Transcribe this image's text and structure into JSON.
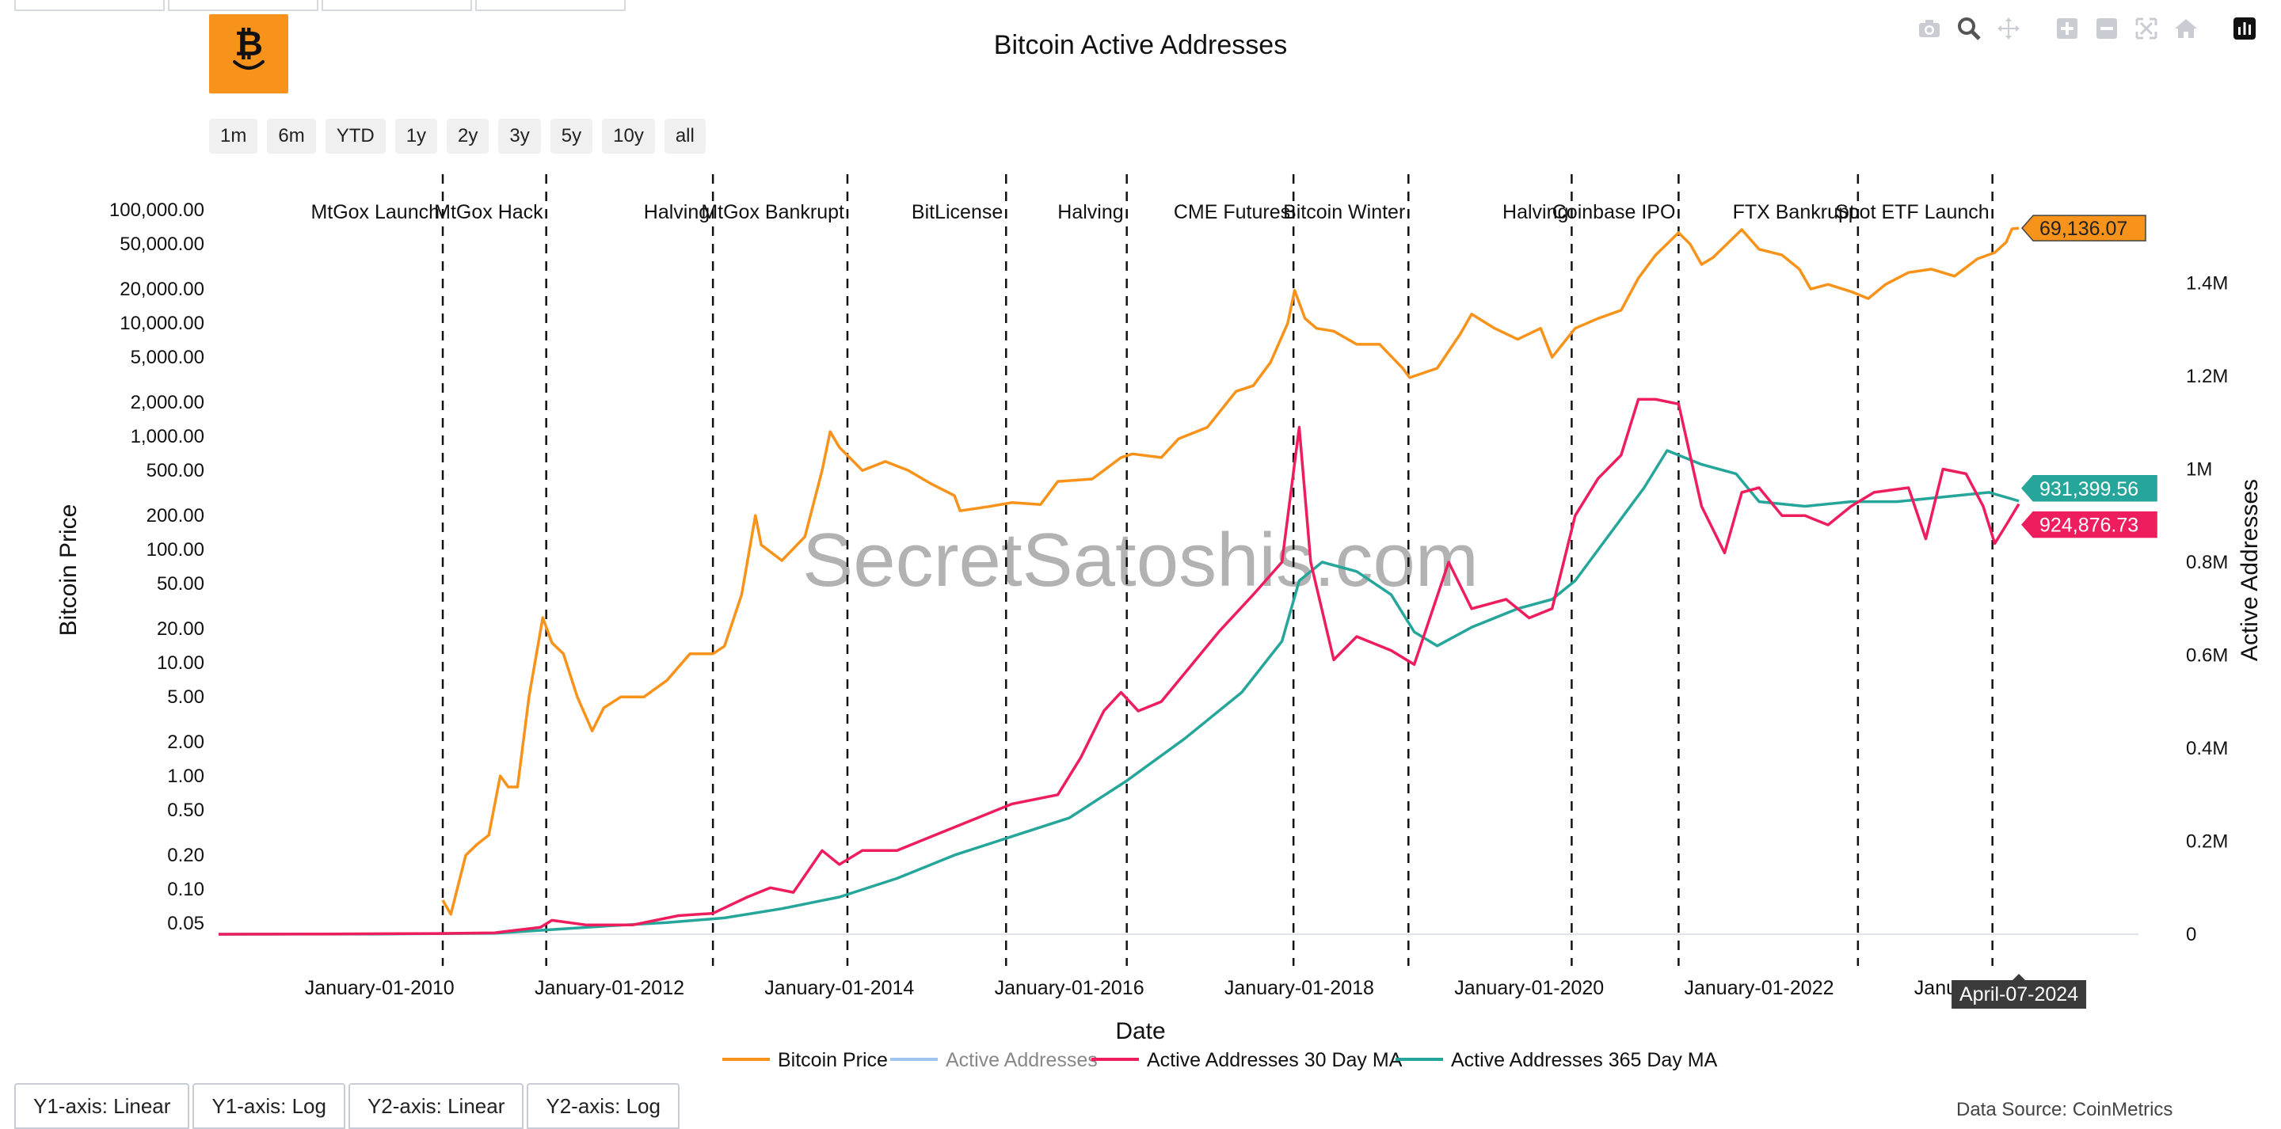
{
  "header": {
    "title": "Bitcoin Active Addresses"
  },
  "range_buttons": [
    "1m",
    "6m",
    "YTD",
    "1y",
    "2y",
    "3y",
    "5y",
    "10y",
    "all"
  ],
  "modebar": [
    "camera-icon",
    "zoom-icon",
    "pan-icon",
    "zoom-in-icon",
    "zoom-out-icon",
    "autoscale-icon",
    "reset-axes-icon",
    "plotly-logo-icon"
  ],
  "axis_toggles": [
    "Y1-axis: Linear",
    "Y1-axis: Log",
    "Y2-axis: Linear",
    "Y2-axis: Log"
  ],
  "source": "Data Source: CoinMetrics",
  "watermark": "SecretSatoshis.com",
  "hover_label": "April-07-2024",
  "colors": {
    "price": "#f7931a",
    "active": "#9ec5f0",
    "ma30": "#ee1d5e",
    "ma365": "#26a69a",
    "logo": "#f7931a"
  },
  "chart_data": {
    "type": "line",
    "title": "Bitcoin Active Addresses",
    "xlabel": "Date",
    "y1label": "Bitcoin Price",
    "y2label": "Active Addresses",
    "y1_scale": "log",
    "y1_range": [
      0.04,
      150000
    ],
    "y2_range": [
      0,
      1600000
    ],
    "x_range": [
      2008.6,
      2025.3
    ],
    "x_ticks": [
      {
        "x": 2010,
        "label": "January-01-2010"
      },
      {
        "x": 2012,
        "label": "January-01-2012"
      },
      {
        "x": 2014,
        "label": "January-01-2014"
      },
      {
        "x": 2016,
        "label": "January-01-2016"
      },
      {
        "x": 2018,
        "label": "January-01-2018"
      },
      {
        "x": 2020,
        "label": "January-01-2020"
      },
      {
        "x": 2022,
        "label": "January-01-2022"
      },
      {
        "x": 2024,
        "label": "January-01-2024"
      }
    ],
    "y1_ticks": [
      {
        "v": 100000,
        "label": "100,000.00"
      },
      {
        "v": 50000,
        "label": "50,000.00"
      },
      {
        "v": 20000,
        "label": "20,000.00"
      },
      {
        "v": 10000,
        "label": "10,000.00"
      },
      {
        "v": 5000,
        "label": "5,000.00"
      },
      {
        "v": 2000,
        "label": "2,000.00"
      },
      {
        "v": 1000,
        "label": "1,000.00"
      },
      {
        "v": 500,
        "label": "500.00"
      },
      {
        "v": 200,
        "label": "200.00"
      },
      {
        "v": 100,
        "label": "100.00"
      },
      {
        "v": 50,
        "label": "50.00"
      },
      {
        "v": 20,
        "label": "20.00"
      },
      {
        "v": 10,
        "label": "10.00"
      },
      {
        "v": 5,
        "label": "5.00"
      },
      {
        "v": 2,
        "label": "2.00"
      },
      {
        "v": 1,
        "label": "1.00"
      },
      {
        "v": 0.5,
        "label": "0.50"
      },
      {
        "v": 0.2,
        "label": "0.20"
      },
      {
        "v": 0.1,
        "label": "0.10"
      },
      {
        "v": 0.05,
        "label": "0.05"
      }
    ],
    "y2_ticks": [
      {
        "v": 1400000,
        "label": "1.4M"
      },
      {
        "v": 1200000,
        "label": "1.2M"
      },
      {
        "v": 1000000,
        "label": "1M"
      },
      {
        "v": 800000,
        "label": "0.8M"
      },
      {
        "v": 600000,
        "label": "0.6M"
      },
      {
        "v": 400000,
        "label": "0.4M"
      },
      {
        "v": 200000,
        "label": "0.2M"
      },
      {
        "v": 0,
        "label": "0"
      }
    ],
    "events": [
      {
        "x": 2010.55,
        "label": "MtGox Launch"
      },
      {
        "x": 2011.45,
        "label": "MtGox Hack"
      },
      {
        "x": 2012.9,
        "label": "Halving"
      },
      {
        "x": 2014.07,
        "label": "MtGox Bankrupt"
      },
      {
        "x": 2015.45,
        "label": "BitLicense"
      },
      {
        "x": 2016.5,
        "label": "Halving"
      },
      {
        "x": 2017.95,
        "label": "CME Futures"
      },
      {
        "x": 2018.95,
        "label": "Bitcoin Winter"
      },
      {
        "x": 2020.37,
        "label": "Halving"
      },
      {
        "x": 2021.3,
        "label": "Coinbase IPO"
      },
      {
        "x": 2022.86,
        "label": "FTX Bankrupt"
      },
      {
        "x": 2024.03,
        "label": "Spot ETF Launch"
      }
    ],
    "series": [
      {
        "name": "Bitcoin Price",
        "axis": "y1",
        "points": [
          [
            2010.55,
            0.08
          ],
          [
            2010.62,
            0.06
          ],
          [
            2010.75,
            0.2
          ],
          [
            2010.85,
            0.25
          ],
          [
            2010.95,
            0.3
          ],
          [
            2011.05,
            1
          ],
          [
            2011.12,
            0.8
          ],
          [
            2011.2,
            0.8
          ],
          [
            2011.3,
            5
          ],
          [
            2011.42,
            25
          ],
          [
            2011.5,
            15
          ],
          [
            2011.6,
            12
          ],
          [
            2011.72,
            5
          ],
          [
            2011.85,
            2.5
          ],
          [
            2011.95,
            4
          ],
          [
            2012.1,
            5
          ],
          [
            2012.3,
            5
          ],
          [
            2012.5,
            7
          ],
          [
            2012.7,
            12
          ],
          [
            2012.9,
            12
          ],
          [
            2013.0,
            14
          ],
          [
            2013.15,
            40
          ],
          [
            2013.27,
            200
          ],
          [
            2013.32,
            110
          ],
          [
            2013.5,
            80
          ],
          [
            2013.7,
            130
          ],
          [
            2013.85,
            500
          ],
          [
            2013.92,
            1100
          ],
          [
            2014.0,
            800
          ],
          [
            2014.2,
            500
          ],
          [
            2014.4,
            600
          ],
          [
            2014.6,
            500
          ],
          [
            2014.8,
            380
          ],
          [
            2015.0,
            300
          ],
          [
            2015.05,
            220
          ],
          [
            2015.3,
            240
          ],
          [
            2015.5,
            260
          ],
          [
            2015.75,
            250
          ],
          [
            2015.9,
            400
          ],
          [
            2016.2,
            420
          ],
          [
            2016.45,
            650
          ],
          [
            2016.55,
            700
          ],
          [
            2016.8,
            650
          ],
          [
            2016.95,
            950
          ],
          [
            2017.2,
            1200
          ],
          [
            2017.45,
            2500
          ],
          [
            2017.6,
            2800
          ],
          [
            2017.75,
            4500
          ],
          [
            2017.9,
            10000
          ],
          [
            2017.96,
            19500
          ],
          [
            2018.05,
            11000
          ],
          [
            2018.15,
            9000
          ],
          [
            2018.3,
            8500
          ],
          [
            2018.5,
            6500
          ],
          [
            2018.7,
            6500
          ],
          [
            2018.9,
            4000
          ],
          [
            2018.96,
            3300
          ],
          [
            2019.2,
            4000
          ],
          [
            2019.4,
            8000
          ],
          [
            2019.5,
            12000
          ],
          [
            2019.7,
            9000
          ],
          [
            2019.9,
            7200
          ],
          [
            2020.1,
            9000
          ],
          [
            2020.2,
            5000
          ],
          [
            2020.4,
            9000
          ],
          [
            2020.6,
            11000
          ],
          [
            2020.8,
            13000
          ],
          [
            2020.95,
            25000
          ],
          [
            2021.1,
            40000
          ],
          [
            2021.3,
            63000
          ],
          [
            2021.4,
            50000
          ],
          [
            2021.5,
            33000
          ],
          [
            2021.6,
            38000
          ],
          [
            2021.85,
            67000
          ],
          [
            2022.0,
            45000
          ],
          [
            2022.2,
            40000
          ],
          [
            2022.35,
            30000
          ],
          [
            2022.45,
            20000
          ],
          [
            2022.6,
            22000
          ],
          [
            2022.8,
            19000
          ],
          [
            2022.95,
            16500
          ],
          [
            2023.1,
            22000
          ],
          [
            2023.3,
            28000
          ],
          [
            2023.5,
            30000
          ],
          [
            2023.7,
            26000
          ],
          [
            2023.9,
            37000
          ],
          [
            2024.05,
            42000
          ],
          [
            2024.15,
            52000
          ],
          [
            2024.2,
            68000
          ],
          [
            2024.26,
            69136
          ]
        ]
      },
      {
        "name": "Active Addresses",
        "axis": "y2",
        "hidden": true,
        "points": []
      },
      {
        "name": "Active Addresses 30 Day MA",
        "axis": "y2",
        "points": [
          [
            2008.6,
            0
          ],
          [
            2009.5,
            500
          ],
          [
            2010.0,
            1000
          ],
          [
            2010.5,
            1500
          ],
          [
            2011.0,
            3000
          ],
          [
            2011.4,
            15000
          ],
          [
            2011.5,
            30000
          ],
          [
            2011.8,
            20000
          ],
          [
            2012.2,
            20000
          ],
          [
            2012.6,
            40000
          ],
          [
            2012.9,
            45000
          ],
          [
            2013.2,
            80000
          ],
          [
            2013.4,
            100000
          ],
          [
            2013.6,
            90000
          ],
          [
            2013.85,
            180000
          ],
          [
            2014.0,
            150000
          ],
          [
            2014.2,
            180000
          ],
          [
            2014.5,
            180000
          ],
          [
            2014.8,
            210000
          ],
          [
            2015.2,
            250000
          ],
          [
            2015.5,
            280000
          ],
          [
            2015.9,
            300000
          ],
          [
            2016.1,
            380000
          ],
          [
            2016.3,
            480000
          ],
          [
            2016.45,
            520000
          ],
          [
            2016.6,
            480000
          ],
          [
            2016.8,
            500000
          ],
          [
            2017.0,
            560000
          ],
          [
            2017.3,
            650000
          ],
          [
            2017.6,
            730000
          ],
          [
            2017.85,
            800000
          ],
          [
            2018.0,
            1090000
          ],
          [
            2018.1,
            800000
          ],
          [
            2018.3,
            590000
          ],
          [
            2018.5,
            640000
          ],
          [
            2018.8,
            610000
          ],
          [
            2019.0,
            580000
          ],
          [
            2019.3,
            800000
          ],
          [
            2019.5,
            700000
          ],
          [
            2019.8,
            720000
          ],
          [
            2020.0,
            680000
          ],
          [
            2020.2,
            700000
          ],
          [
            2020.4,
            900000
          ],
          [
            2020.6,
            980000
          ],
          [
            2020.8,
            1030000
          ],
          [
            2020.95,
            1150000
          ],
          [
            2021.1,
            1150000
          ],
          [
            2021.3,
            1140000
          ],
          [
            2021.5,
            920000
          ],
          [
            2021.7,
            820000
          ],
          [
            2021.85,
            950000
          ],
          [
            2022.0,
            960000
          ],
          [
            2022.2,
            900000
          ],
          [
            2022.4,
            900000
          ],
          [
            2022.6,
            880000
          ],
          [
            2022.8,
            920000
          ],
          [
            2023.0,
            950000
          ],
          [
            2023.3,
            960000
          ],
          [
            2023.45,
            850000
          ],
          [
            2023.6,
            1000000
          ],
          [
            2023.8,
            990000
          ],
          [
            2023.95,
            920000
          ],
          [
            2024.05,
            840000
          ],
          [
            2024.15,
            880000
          ],
          [
            2024.26,
            924877
          ]
        ]
      },
      {
        "name": "Active Addresses 365 Day MA",
        "axis": "y2",
        "points": [
          [
            2008.6,
            0
          ],
          [
            2010.0,
            500
          ],
          [
            2011.0,
            2000
          ],
          [
            2011.5,
            10000
          ],
          [
            2012.0,
            18000
          ],
          [
            2012.5,
            25000
          ],
          [
            2013.0,
            35000
          ],
          [
            2013.5,
            55000
          ],
          [
            2014.0,
            80000
          ],
          [
            2014.5,
            120000
          ],
          [
            2015.0,
            170000
          ],
          [
            2015.5,
            210000
          ],
          [
            2016.0,
            250000
          ],
          [
            2016.5,
            330000
          ],
          [
            2017.0,
            420000
          ],
          [
            2017.5,
            520000
          ],
          [
            2017.85,
            630000
          ],
          [
            2018.0,
            760000
          ],
          [
            2018.2,
            800000
          ],
          [
            2018.5,
            780000
          ],
          [
            2018.8,
            730000
          ],
          [
            2019.0,
            650000
          ],
          [
            2019.2,
            620000
          ],
          [
            2019.5,
            660000
          ],
          [
            2019.9,
            700000
          ],
          [
            2020.2,
            720000
          ],
          [
            2020.4,
            760000
          ],
          [
            2020.7,
            860000
          ],
          [
            2021.0,
            960000
          ],
          [
            2021.2,
            1040000
          ],
          [
            2021.5,
            1010000
          ],
          [
            2021.8,
            990000
          ],
          [
            2022.0,
            930000
          ],
          [
            2022.4,
            920000
          ],
          [
            2022.8,
            930000
          ],
          [
            2023.2,
            930000
          ],
          [
            2023.6,
            940000
          ],
          [
            2024.0,
            950000
          ],
          [
            2024.26,
            931400
          ]
        ]
      }
    ],
    "end_labels": [
      {
        "series": "Bitcoin Price",
        "text": "69,136.07",
        "color": "#f7931a"
      },
      {
        "series": "Active Addresses 365 Day MA",
        "text": "931,399.56",
        "color": "#26a69a"
      },
      {
        "series": "Active Addresses 30 Day MA",
        "text": "924,876.73",
        "color": "#ee1d5e"
      }
    ],
    "legend_position": "bottom-center"
  }
}
